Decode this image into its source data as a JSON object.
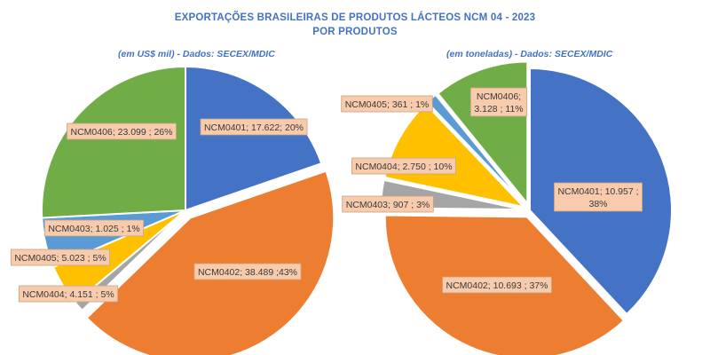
{
  "header": {
    "title_line1": "EXPORTAÇÕES  BRASILEIRAS  DE PRODUTOS  LÁCTEOS NCM 04 -  2023",
    "title_line2": "POR PRODUTOS"
  },
  "colors": {
    "NCM0401": "#4472C4",
    "NCM0402": "#ED7D31",
    "NCM0403": "#A5A5A5",
    "NCM0404": "#FFC000",
    "NCM0405": "#5B9BD5",
    "NCM0406": "#70AD47",
    "label_fill": "#F8CBAD",
    "label_stroke": "#C9A27E"
  },
  "chart_data": [
    {
      "type": "pie",
      "subtitle": "(em US$ mil) - Dados: SECEX/MDIC",
      "slices": [
        {
          "name": "NCM0401",
          "value": 17622,
          "percent": 20,
          "label_lines": [
            "NCM0401; 17.622; 20%"
          ]
        },
        {
          "name": "NCM0402",
          "value": 38489,
          "percent": 43,
          "label_lines": [
            "NCM0402;  38.489 ;43%"
          ]
        },
        {
          "name": "NCM0403",
          "value": 1025,
          "percent": 1,
          "label_lines": [
            "NCM0403;  1.025 ; 1%"
          ]
        },
        {
          "name": "NCM0404",
          "value": 4151,
          "percent": 5,
          "label_lines": [
            "NCM0404;  4.151 ; 5%"
          ]
        },
        {
          "name": "NCM0405",
          "value": 5023,
          "percent": 5,
          "label_lines": [
            "NCM0405;  5.023 ; 5%"
          ]
        },
        {
          "name": "NCM0406",
          "value": 23099,
          "percent": 26,
          "label_lines": [
            "NCM0406;  23.099 ; 26%"
          ]
        }
      ]
    },
    {
      "type": "pie",
      "subtitle": "(em toneladas)  - Dados: SECEX/MDIC",
      "slices": [
        {
          "name": "NCM0401",
          "value": 10957,
          "percent": 38,
          "label_lines": [
            "NCM0401;  10.957 ;",
            "38%"
          ]
        },
        {
          "name": "NCM0402",
          "value": 10693,
          "percent": 37,
          "label_lines": [
            "NCM0402;  10.693 ; 37%"
          ]
        },
        {
          "name": "NCM0403",
          "value": 907,
          "percent": 3,
          "label_lines": [
            "NCM0403;  907 ; 3%"
          ]
        },
        {
          "name": "NCM0404",
          "value": 2750,
          "percent": 10,
          "label_lines": [
            "NCM0404;  2.750 ; 10%"
          ]
        },
        {
          "name": "NCM0405",
          "value": 361,
          "percent": 1,
          "label_lines": [
            "NCM0405;  361 ; 1%"
          ]
        },
        {
          "name": "NCM0406",
          "value": 3128,
          "percent": 11,
          "label_lines": [
            "NCM0406;",
            "3.128 ; 11%"
          ]
        }
      ]
    }
  ]
}
